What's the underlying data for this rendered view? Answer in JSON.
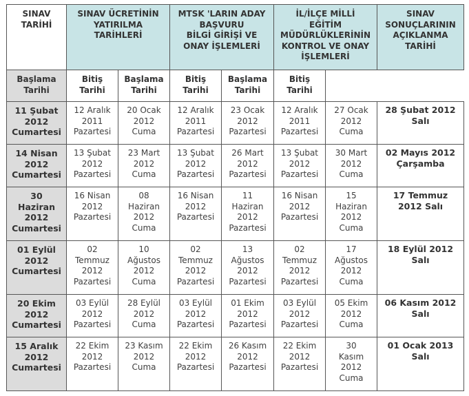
{
  "headers": [
    "SINAV\nTARİHİ",
    "SINAV ÜCRETİNİN\nYATIRILMA\nTARİHLERİ",
    "MTSK 'LARIN ADAY\nBAŞVURU\nBİLGİ GİRİŞİ VE\nONAY İŞLEMLERİ",
    "İL/İLÇE MİLLİ\nEĞİTİM\nMÜDÜRLÜKLERİNİN\nKONTROL VE ONAY\nİŞLEMLERİ",
    "SINAV\nSONUÇLARININ\nAÇIKLANMA\nTARİHİ"
  ],
  "subheaders": [
    "Başlama\nTarihi",
    "Bitiş\nTarihi",
    "Başlama\nTarihi",
    "Bitiş\nTarihi",
    "Başlama\nTarihi",
    "Bitiş\nTarihi"
  ],
  "rows": [
    {
      "exam": "11 Şubat\n2012\nCumartesi",
      "cells": [
        "12 Aralık\n2011\nPazartesi",
        "20 Ocak\n2012\nCuma",
        "12 Aralık\n2011\nPazartesi",
        "23 Ocak\n2012\nPazartesi",
        "12 Aralık\n2011\nPazartesi",
        "27 Ocak\n2012\nCuma"
      ],
      "result": "28 Şubat 2012\nSalı"
    },
    {
      "exam": "14 Nisan\n2012\nCumartesi",
      "cells": [
        "13 Şubat\n2012\nPazartesi",
        "23 Mart\n2012\nCuma",
        "13 Şubat\n2012\nPazartesi",
        "26 Mart\n2012\nPazartesi",
        "13 Şubat\n2012\nPazartesi",
        "30 Mart\n2012\nCuma"
      ],
      "result": "02 Mayıs 2012\nÇarşamba"
    },
    {
      "exam": "30\nHaziran\n2012\nCumartesi",
      "cells": [
        "16 Nisan\n2012\nPazartesi",
        "08\nHaziran\n2012\nCuma",
        "16 Nisan\n2012\nPazartesi",
        "11\nHaziran\n2012\nPazartesi",
        "16 Nisan\n2012\nPazartesi",
        "15\nHaziran\n2012\nCuma"
      ],
      "result": "17 Temmuz\n2012 Salı"
    },
    {
      "exam": "01 Eylül\n2012\nCumartesi",
      "cells": [
        "02\nTemmuz\n2012\nPazartesi",
        "10\nAğustos\n2012\nCuma",
        "02\nTemmuz\n2012\nPazartesi",
        "13\nAğustos\n2012\nPazartesi",
        "02\nTemmuz\n2012\nPazartesi",
        "17\nAğustos\n2012\nCuma"
      ],
      "result": "18 Eylül 2012\nSalı"
    },
    {
      "exam": "20 Ekim\n2012\nCumartesi",
      "cells": [
        "03 Eylül\n2012\nPazartesi",
        "28 Eylül\n2012\nCuma",
        "03 Eylül\n2012\nPazartesi",
        "01 Ekim\n2012\nPazartesi",
        "03 Eylül\n2012\nPazartesi",
        "05 Ekim\n2012\nCuma"
      ],
      "result": "06 Kasım 2012\nSalı"
    },
    {
      "exam": "15 Aralık\n2012\nCumartesi",
      "cells": [
        "22 Ekim\n2012\nPazartesi",
        "23 Kasım\n2012\nCuma",
        "22 Ekim\n2012\nPazartesi",
        "26 Kasım\n2012\nPazartesi",
        "22 Ekim\n2012\nPazartesi",
        "30\nKasım\n2012\nCuma"
      ],
      "result": "01 Ocak 2013\nSalı"
    }
  ]
}
